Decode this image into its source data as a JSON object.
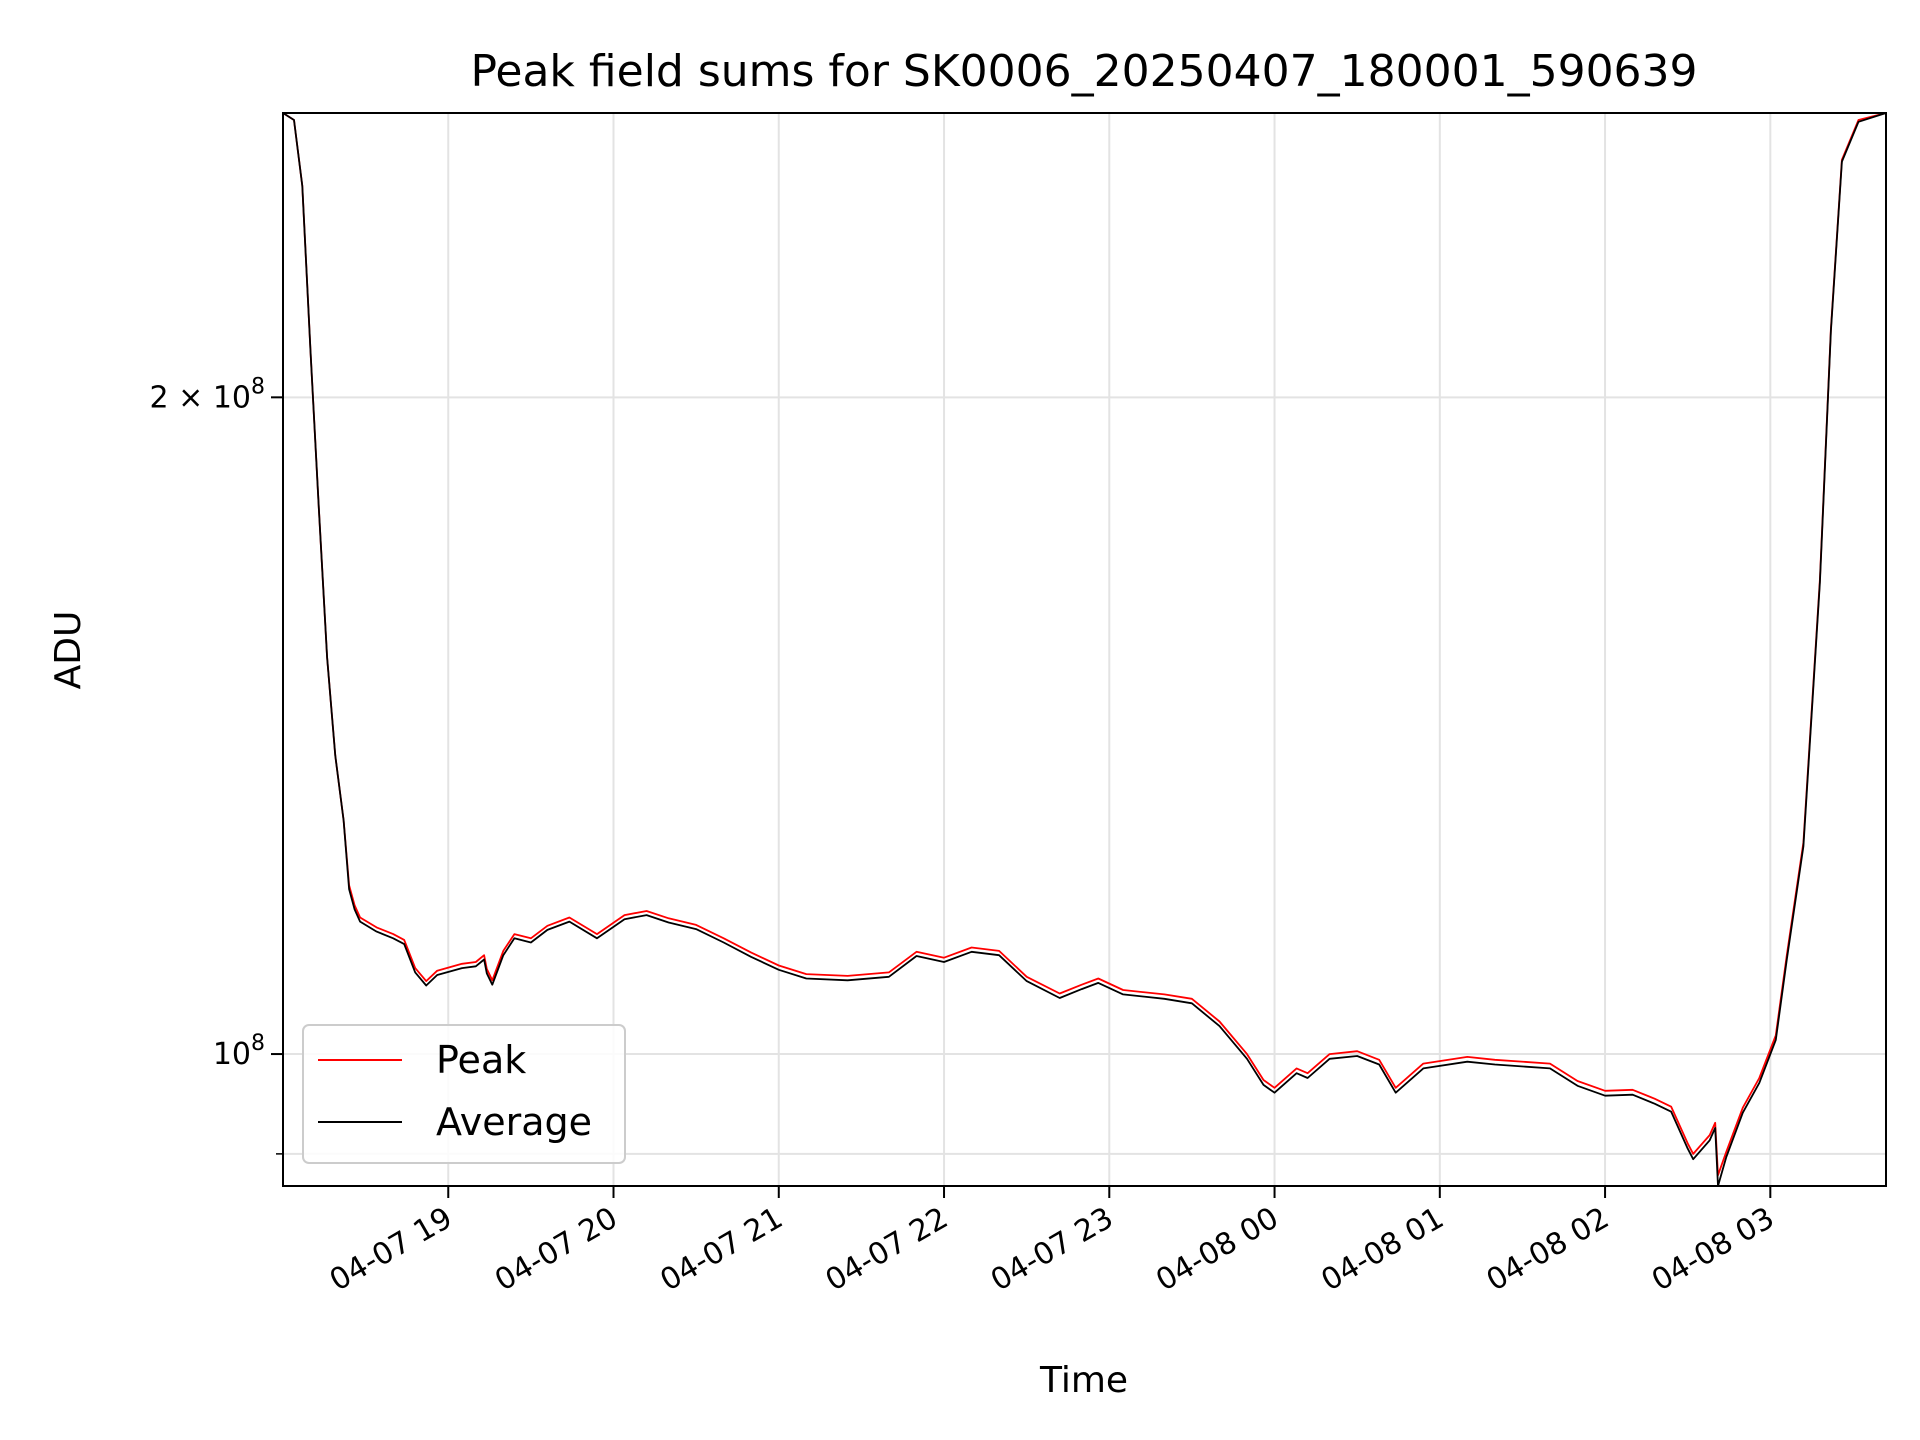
{
  "chart_data": {
    "type": "line",
    "title": "Peak field sums for SK0006_20250407_180001_590639",
    "xlabel": "Time",
    "ylabel": "ADU",
    "y_scale": "log",
    "ylim": [
      87000000,
      270000000
    ],
    "y_ticks": [
      {
        "value": 100000000,
        "base": "10",
        "exp": "8"
      },
      {
        "value": 200000000,
        "mant": "2",
        "base": "10",
        "exp": "8"
      }
    ],
    "y_minor_ticks": [
      90000000
    ],
    "xlim": [
      "2025-04-07 18:00",
      "2025-04-08 03:42"
    ],
    "x_ticks": [
      {
        "value": "2025-04-07 19:00",
        "label": "04-07 19"
      },
      {
        "value": "2025-04-07 20:00",
        "label": "04-07 20"
      },
      {
        "value": "2025-04-07 21:00",
        "label": "04-07 21"
      },
      {
        "value": "2025-04-07 22:00",
        "label": "04-07 22"
      },
      {
        "value": "2025-04-07 23:00",
        "label": "04-07 23"
      },
      {
        "value": "2025-04-08 00:00",
        "label": "04-08 00"
      },
      {
        "value": "2025-04-08 01:00",
        "label": "04-08 01"
      },
      {
        "value": "2025-04-08 02:00",
        "label": "04-08 02"
      },
      {
        "value": "2025-04-08 03:00",
        "label": "04-08 03"
      }
    ],
    "grid": true,
    "legend_position": "lower-left",
    "series": [
      {
        "name": "Peak",
        "color": "#ff0000",
        "points": [
          [
            "2025-04-07 18:00",
            270000000
          ],
          [
            "2025-04-07 18:04",
            268000000
          ],
          [
            "2025-04-07 18:07",
            250000000
          ],
          [
            "2025-04-07 18:10",
            210000000
          ],
          [
            "2025-04-07 18:13",
            178000000
          ],
          [
            "2025-04-07 18:16",
            152000000
          ],
          [
            "2025-04-07 18:19",
            137000000
          ],
          [
            "2025-04-07 18:22",
            128000000
          ],
          [
            "2025-04-07 18:24",
            119500000
          ],
          [
            "2025-04-07 18:26",
            117000000
          ],
          [
            "2025-04-07 18:28",
            115500000
          ],
          [
            "2025-04-07 18:34",
            114300000
          ],
          [
            "2025-04-07 18:40",
            113500000
          ],
          [
            "2025-04-07 18:44",
            112800000
          ],
          [
            "2025-04-07 18:48",
            109500000
          ],
          [
            "2025-04-07 18:52",
            108000000
          ],
          [
            "2025-04-07 18:56",
            109200000
          ],
          [
            "2025-04-07 19:05",
            110000000
          ],
          [
            "2025-04-07 19:10",
            110200000
          ],
          [
            "2025-04-07 19:13",
            111000000
          ],
          [
            "2025-04-07 19:14",
            109400000
          ],
          [
            "2025-04-07 19:16",
            108100000
          ],
          [
            "2025-04-07 19:20",
            111500000
          ],
          [
            "2025-04-07 19:24",
            113500000
          ],
          [
            "2025-04-07 19:30",
            113000000
          ],
          [
            "2025-04-07 19:36",
            114500000
          ],
          [
            "2025-04-07 19:44",
            115500000
          ],
          [
            "2025-04-07 19:54",
            113500000
          ],
          [
            "2025-04-07 20:04",
            115800000
          ],
          [
            "2025-04-07 20:12",
            116300000
          ],
          [
            "2025-04-07 20:20",
            115400000
          ],
          [
            "2025-04-07 20:30",
            114600000
          ],
          [
            "2025-04-07 20:40",
            113000000
          ],
          [
            "2025-04-07 20:50",
            111300000
          ],
          [
            "2025-04-07 21:00",
            109800000
          ],
          [
            "2025-04-07 21:10",
            108800000
          ],
          [
            "2025-04-07 21:25",
            108600000
          ],
          [
            "2025-04-07 21:40",
            109000000
          ],
          [
            "2025-04-07 21:50",
            111400000
          ],
          [
            "2025-04-07 22:00",
            110700000
          ],
          [
            "2025-04-07 22:10",
            111900000
          ],
          [
            "2025-04-07 22:20",
            111500000
          ],
          [
            "2025-04-07 22:30",
            108500000
          ],
          [
            "2025-04-07 22:42",
            106600000
          ],
          [
            "2025-04-07 22:50",
            107600000
          ],
          [
            "2025-04-07 22:56",
            108300000
          ],
          [
            "2025-04-07 23:05",
            107000000
          ],
          [
            "2025-04-07 23:20",
            106500000
          ],
          [
            "2025-04-07 23:30",
            106000000
          ],
          [
            "2025-04-07 23:40",
            103500000
          ],
          [
            "2025-04-07 23:50",
            100000000
          ],
          [
            "2025-04-07 23:56",
            97300000
          ],
          [
            "2025-04-08 00:00",
            96500000
          ],
          [
            "2025-04-08 00:08",
            98500000
          ],
          [
            "2025-04-08 00:12",
            98000000
          ],
          [
            "2025-04-08 00:20",
            100000000
          ],
          [
            "2025-04-08 00:30",
            100300000
          ],
          [
            "2025-04-08 00:38",
            99400000
          ],
          [
            "2025-04-08 00:44",
            96500000
          ],
          [
            "2025-04-08 00:54",
            99000000
          ],
          [
            "2025-04-08 01:10",
            99700000
          ],
          [
            "2025-04-08 01:20",
            99400000
          ],
          [
            "2025-04-08 01:40",
            99000000
          ],
          [
            "2025-04-08 01:50",
            97200000
          ],
          [
            "2025-04-08 02:00",
            96200000
          ],
          [
            "2025-04-08 02:10",
            96300000
          ],
          [
            "2025-04-08 02:18",
            95400000
          ],
          [
            "2025-04-08 02:24",
            94600000
          ],
          [
            "2025-04-08 02:30",
            91000000
          ],
          [
            "2025-04-08 02:32",
            90000000
          ],
          [
            "2025-04-08 02:38",
            91800000
          ],
          [
            "2025-04-08 02:40",
            93000000
          ],
          [
            "2025-04-08 02:41",
            88000000
          ],
          [
            "2025-04-08 02:44",
            90200000
          ],
          [
            "2025-04-08 02:50",
            94500000
          ],
          [
            "2025-04-08 02:56",
            97500000
          ],
          [
            "2025-04-08 03:02",
            102000000
          ],
          [
            "2025-04-08 03:06",
            111000000
          ],
          [
            "2025-04-08 03:12",
            125000000
          ],
          [
            "2025-04-08 03:18",
            165000000
          ],
          [
            "2025-04-08 03:22",
            215000000
          ],
          [
            "2025-04-08 03:26",
            257000000
          ],
          [
            "2025-04-08 03:32",
            268000000
          ],
          [
            "2025-04-08 03:42",
            270000000
          ]
        ]
      },
      {
        "name": "Average",
        "color": "#000000",
        "points": [
          [
            "2025-04-07 18:00",
            270000000
          ],
          [
            "2025-04-07 18:04",
            268000000
          ],
          [
            "2025-04-07 18:07",
            250000000
          ],
          [
            "2025-04-07 18:10",
            210000000
          ],
          [
            "2025-04-07 18:13",
            178000000
          ],
          [
            "2025-04-07 18:16",
            152000000
          ],
          [
            "2025-04-07 18:19",
            137000000
          ],
          [
            "2025-04-07 18:22",
            128000000
          ],
          [
            "2025-04-07 18:24",
            119000000
          ],
          [
            "2025-04-07 18:26",
            116500000
          ],
          [
            "2025-04-07 18:28",
            115000000
          ],
          [
            "2025-04-07 18:34",
            113800000
          ],
          [
            "2025-04-07 18:40",
            113000000
          ],
          [
            "2025-04-07 18:44",
            112300000
          ],
          [
            "2025-04-07 18:48",
            109000000
          ],
          [
            "2025-04-07 18:52",
            107500000
          ],
          [
            "2025-04-07 18:56",
            108700000
          ],
          [
            "2025-04-07 19:05",
            109500000
          ],
          [
            "2025-04-07 19:10",
            109700000
          ],
          [
            "2025-04-07 19:13",
            110500000
          ],
          [
            "2025-04-07 19:14",
            108900000
          ],
          [
            "2025-04-07 19:16",
            107600000
          ],
          [
            "2025-04-07 19:20",
            111000000
          ],
          [
            "2025-04-07 19:24",
            113000000
          ],
          [
            "2025-04-07 19:30",
            112500000
          ],
          [
            "2025-04-07 19:36",
            114000000
          ],
          [
            "2025-04-07 19:44",
            115000000
          ],
          [
            "2025-04-07 19:54",
            113000000
          ],
          [
            "2025-04-07 20:04",
            115300000
          ],
          [
            "2025-04-07 20:12",
            115800000
          ],
          [
            "2025-04-07 20:20",
            114900000
          ],
          [
            "2025-04-07 20:30",
            114100000
          ],
          [
            "2025-04-07 20:40",
            112500000
          ],
          [
            "2025-04-07 20:50",
            110800000
          ],
          [
            "2025-04-07 21:00",
            109300000
          ],
          [
            "2025-04-07 21:10",
            108300000
          ],
          [
            "2025-04-07 21:25",
            108100000
          ],
          [
            "2025-04-07 21:40",
            108500000
          ],
          [
            "2025-04-07 21:50",
            110900000
          ],
          [
            "2025-04-07 22:00",
            110200000
          ],
          [
            "2025-04-07 22:10",
            111400000
          ],
          [
            "2025-04-07 22:20",
            111000000
          ],
          [
            "2025-04-07 22:30",
            108000000
          ],
          [
            "2025-04-07 22:42",
            106100000
          ],
          [
            "2025-04-07 22:50",
            107100000
          ],
          [
            "2025-04-07 22:56",
            107800000
          ],
          [
            "2025-04-07 23:05",
            106500000
          ],
          [
            "2025-04-07 23:20",
            106000000
          ],
          [
            "2025-04-07 23:30",
            105500000
          ],
          [
            "2025-04-07 23:40",
            103000000
          ],
          [
            "2025-04-07 23:50",
            99500000
          ],
          [
            "2025-04-07 23:56",
            96800000
          ],
          [
            "2025-04-08 00:00",
            96000000
          ],
          [
            "2025-04-08 00:08",
            98000000
          ],
          [
            "2025-04-08 00:12",
            97500000
          ],
          [
            "2025-04-08 00:20",
            99500000
          ],
          [
            "2025-04-08 00:30",
            99800000
          ],
          [
            "2025-04-08 00:38",
            98900000
          ],
          [
            "2025-04-08 00:44",
            96000000
          ],
          [
            "2025-04-08 00:54",
            98500000
          ],
          [
            "2025-04-08 01:10",
            99200000
          ],
          [
            "2025-04-08 01:20",
            98900000
          ],
          [
            "2025-04-08 01:40",
            98500000
          ],
          [
            "2025-04-08 01:50",
            96700000
          ],
          [
            "2025-04-08 02:00",
            95700000
          ],
          [
            "2025-04-08 02:10",
            95800000
          ],
          [
            "2025-04-08 02:18",
            94900000
          ],
          [
            "2025-04-08 02:24",
            94100000
          ],
          [
            "2025-04-08 02:30",
            90500000
          ],
          [
            "2025-04-08 02:32",
            89500000
          ],
          [
            "2025-04-08 02:38",
            91300000
          ],
          [
            "2025-04-08 02:40",
            92500000
          ],
          [
            "2025-04-08 02:41",
            87000000
          ],
          [
            "2025-04-08 02:44",
            89700000
          ],
          [
            "2025-04-08 02:50",
            94000000
          ],
          [
            "2025-04-08 02:56",
            97000000
          ],
          [
            "2025-04-08 03:02",
            101500000
          ],
          [
            "2025-04-08 03:06",
            110500000
          ],
          [
            "2025-04-08 03:12",
            124500000
          ],
          [
            "2025-04-08 03:18",
            164500000
          ],
          [
            "2025-04-08 03:22",
            214500000
          ],
          [
            "2025-04-08 03:26",
            256500000
          ],
          [
            "2025-04-08 03:32",
            267500000
          ],
          [
            "2025-04-08 03:42",
            270000000
          ]
        ]
      }
    ]
  }
}
